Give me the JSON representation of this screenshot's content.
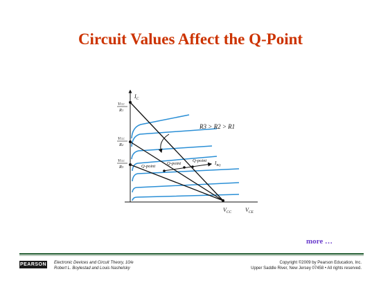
{
  "slide": {
    "title": "Circuit Values Affect the Q-Point",
    "more_link": "more …"
  },
  "figure": {
    "colors": {
      "curves": "#2a8fd6",
      "load_lines": "#111111",
      "title": "#cc3300"
    },
    "axis_labels": {
      "y": "I",
      "y_sub": "C",
      "x": "V",
      "x_sub": "CE",
      "vcc": "V",
      "vcc_sub": "CC"
    },
    "y_intercepts": [
      {
        "num": "V",
        "num_sub": "CC",
        "den": "R",
        "den_sub": "1"
      },
      {
        "num": "V",
        "num_sub": "CC",
        "den": "R",
        "den_sub": "2"
      },
      {
        "num": "V",
        "num_sub": "CC",
        "den": "R",
        "den_sub": "3"
      }
    ],
    "relation": "R3 > R2 > R1",
    "qpoint_labels": [
      "Q-point",
      "Q-point",
      "Q-point"
    ],
    "ibq_label": "I",
    "ibq_sub": "BQ"
  },
  "footer": {
    "logo": "PEARSON",
    "book_title": "Electronic Devices and Circuit Theory, 10/e",
    "authors": "Robert L. Boylestad and Louis Nashelsky",
    "copyright": "Copyright ©2009 by Pearson Education, Inc.",
    "address": "Upper Saddle River, New Jersey 07458 • All rights reserved."
  }
}
